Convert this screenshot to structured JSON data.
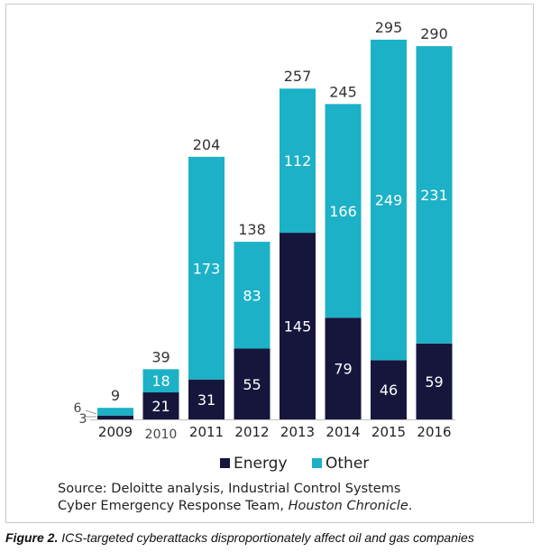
{
  "colors": {
    "energy": "#16163c",
    "other": "#1cb1c6",
    "axis": "#bfbfbf"
  },
  "chart_data": {
    "type": "bar",
    "stacked": true,
    "categories": [
      "2009",
      "2010",
      "2011",
      "2012",
      "2013",
      "2014",
      "2015",
      "2016"
    ],
    "series": [
      {
        "name": "Energy",
        "values": [
          3,
          21,
          31,
          55,
          145,
          79,
          46,
          59
        ]
      },
      {
        "name": "Other",
        "values": [
          6,
          18,
          173,
          83,
          112,
          166,
          249,
          231
        ]
      }
    ],
    "totals": [
      9,
      39,
      204,
      138,
      257,
      245,
      295,
      290
    ],
    "ylim": [
      0,
      295
    ],
    "grid": false,
    "legend_position": "bottom"
  },
  "legend": {
    "energy": "Energy",
    "other": "Other"
  },
  "source": {
    "prefix": "Source: Deloitte analysis, Industrial Control Systems",
    "line2_prefix": "Cyber Emergency Response Team, ",
    "italic": "Houston Chronicle",
    "suffix": "."
  },
  "caption": {
    "label": "Figure 2.",
    "text": " ICS-targeted cyberattacks disproportionately affect oil and gas companies"
  }
}
